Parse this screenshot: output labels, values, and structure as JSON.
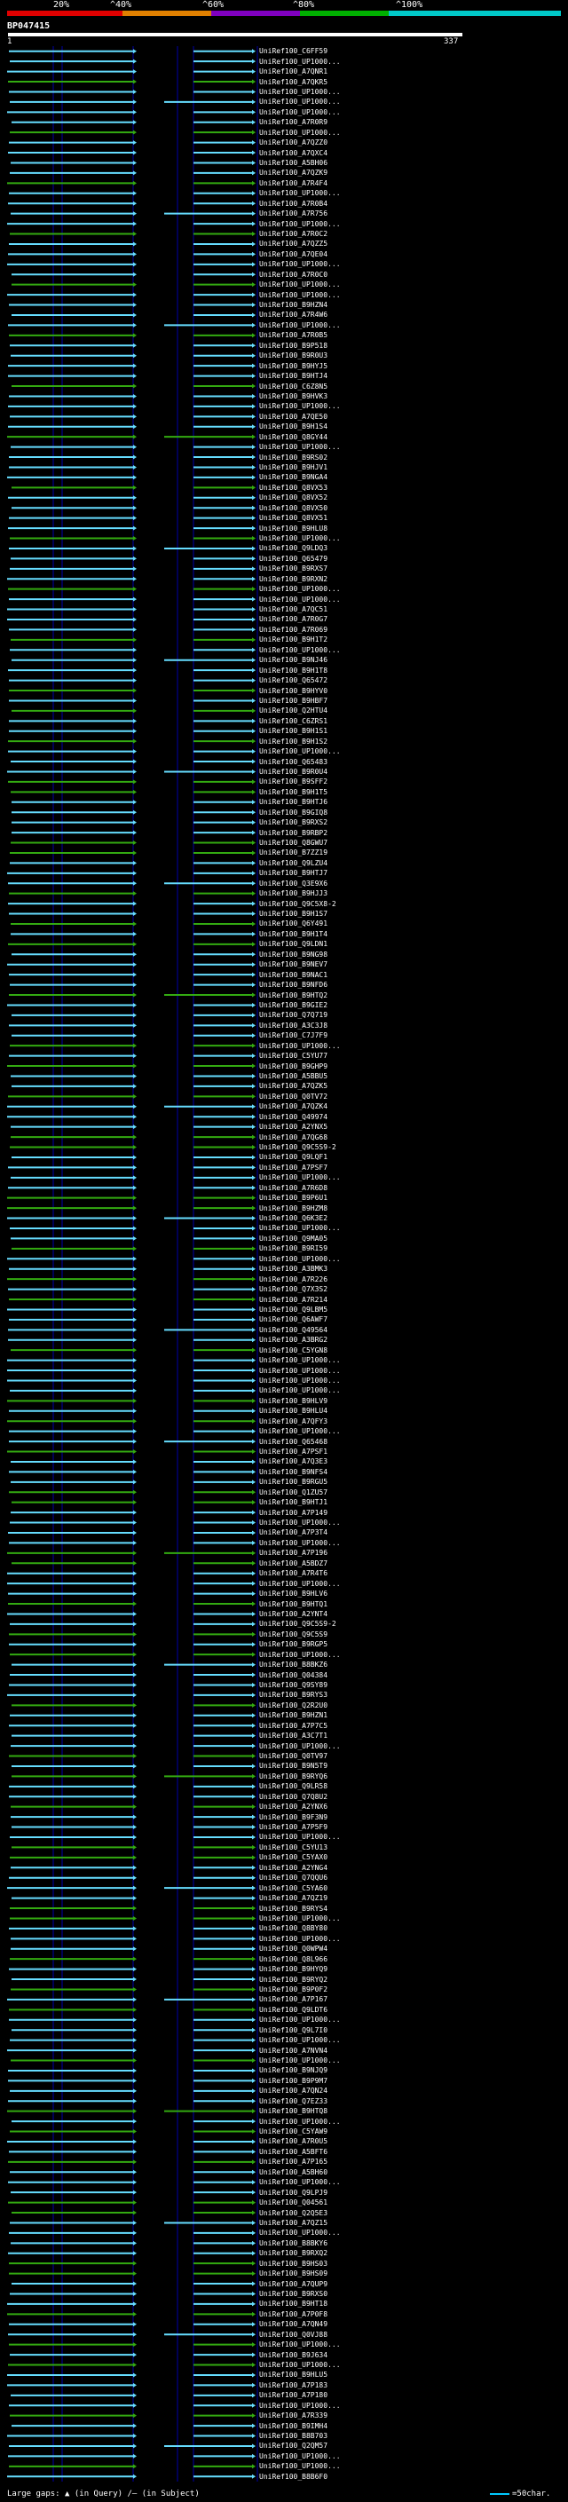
{
  "header": {
    "scale_labels": [
      "20%",
      "^40%",
      "^60%",
      "^80%",
      "^100%"
    ],
    "scale_colors": [
      "#e00000",
      "#e08000",
      "#8000c0",
      "#00b000",
      "#00c8c8"
    ],
    "query_id": "BP047415",
    "range_start": "1",
    "range_end": "337"
  },
  "colors": {
    "cyan": "#66ddff",
    "green": "#33aa11",
    "grid": "#0000aa"
  },
  "hits": [
    "UniRef100_C6FF59",
    "UniRef100_UP1000...",
    "UniRef100_A7QNR1",
    "UniRef100_A7QKR5",
    "UniRef100_UP1000...",
    "UniRef100_UP1000...",
    "UniRef100_UP1000...",
    "UniRef100_A7R0R9",
    "UniRef100_UP1000...",
    "UniRef100_A7QZZ0",
    "UniRef100_A7QXC4",
    "UniRef100_A5BH06",
    "UniRef100_A7QZK9",
    "UniRef100_A7R4F4",
    "UniRef100_UP1000...",
    "UniRef100_A7R0B4",
    "UniRef100_A7R756",
    "UniRef100_UP1000...",
    "UniRef100_A7R0C2",
    "UniRef100_A7QZZ5",
    "UniRef100_A7QE04",
    "UniRef100_UP1000...",
    "UniRef100_A7R0C0",
    "UniRef100_UP1000...",
    "UniRef100_UP1000...",
    "UniRef100_B9HZN4",
    "UniRef100_A7R4W6",
    "UniRef100_UP1000...",
    "UniRef100_A7R0B5",
    "UniRef100_B9P518",
    "UniRef100_B9R0U3",
    "UniRef100_B9HYJ5",
    "UniRef100_B9HTJ4",
    "UniRef100_C6Z8N5",
    "UniRef100_B9HVK3",
    "UniRef100_UP1000...",
    "UniRef100_A7QE50",
    "UniRef100_B9H1S4",
    "UniRef100_Q8GY44",
    "UniRef100_UP1000...",
    "UniRef100_B9RS02",
    "UniRef100_B9HJV1",
    "UniRef100_B9NGA4",
    "UniRef100_Q8VX53",
    "UniRef100_Q8VX52",
    "UniRef100_Q8VX50",
    "UniRef100_Q8VX51",
    "UniRef100_B9HLU8",
    "UniRef100_UP1000...",
    "UniRef100_Q9LDQ3",
    "UniRef100_Q65479",
    "UniRef100_B9RXS7",
    "UniRef100_B9RXN2",
    "UniRef100_UP1000...",
    "UniRef100_UP1000...",
    "UniRef100_A7QC51",
    "UniRef100_A7R0G7",
    "UniRef100_A7R069",
    "UniRef100_B9H1T2",
    "UniRef100_UP1000...",
    "UniRef100_B9NJ46",
    "UniRef100_B9H1T8",
    "UniRef100_Q65472",
    "UniRef100_B9HYV0",
    "UniRef100_B9HBF7",
    "UniRef100_Q2HTU4",
    "UniRef100_C6ZRS1",
    "UniRef100_B9H1S1",
    "UniRef100_B9H1S2",
    "UniRef100_UP1000...",
    "UniRef100_Q65483",
    "UniRef100_B9R0U4",
    "UniRef100_B9SFF2",
    "UniRef100_B9H1T5",
    "UniRef100_B9HTJ6",
    "UniRef100_B9GIQ8",
    "UniRef100_B9RXS2",
    "UniRef100_B9RBP2",
    "UniRef100_Q8GWU7",
    "UniRef100_B7ZZ19",
    "UniRef100_Q9LZU4",
    "UniRef100_B9HTJ7",
    "UniRef100_Q3E9X6",
    "UniRef100_B9HJJ3",
    "UniRef100_Q9C5X8-2",
    "UniRef100_B9H1S7",
    "UniRef100_Q6Y491",
    "UniRef100_B9H1T4",
    "UniRef100_Q9LDN1",
    "UniRef100_B9NG98",
    "UniRef100_B9NEV7",
    "UniRef100_B9NAC1",
    "UniRef100_B9NFD6",
    "UniRef100_B9HTQ2",
    "UniRef100_B9GIE2",
    "UniRef100_Q7Q719",
    "UniRef100_A3C3J8",
    "UniRef100_C7J7F9",
    "UniRef100_UP1000...",
    "UniRef100_C5YU77",
    "UniRef100_B9GHP9",
    "UniRef100_A5BBU5",
    "UniRef100_A7QZK5",
    "UniRef100_Q0TV72",
    "UniRef100_A7QZK4",
    "UniRef100_Q49974",
    "UniRef100_A2YNX5",
    "UniRef100_A7QG68",
    "UniRef100_Q9C5S9-2",
    "UniRef100_Q9LQF1",
    "UniRef100_A7PSF7",
    "UniRef100_UP1000...",
    "UniRef100_A7R6D8",
    "UniRef100_B9P6U1",
    "UniRef100_B9HZM8",
    "UniRef100_Q6K3E2",
    "UniRef100_UP1000...",
    "UniRef100_Q9MA05",
    "UniRef100_B9RI59",
    "UniRef100_UP1000...",
    "UniRef100_A3BMK3",
    "UniRef100_A7R226",
    "UniRef100_Q7X3S2",
    "UniRef100_A7R214",
    "UniRef100_Q9LBM5",
    "UniRef100_Q6AWF7",
    "UniRef100_Q49564",
    "UniRef100_A3BRG2",
    "UniRef100_C5YGN8",
    "UniRef100_UP1000...",
    "UniRef100_UP1000...",
    "UniRef100_UP1000...",
    "UniRef100_UP1000...",
    "UniRef100_B9HLV9",
    "UniRef100_B9HLU4",
    "UniRef100_A7QFY3",
    "UniRef100_UP1000...",
    "UniRef100_Q65468",
    "UniRef100_A7PSF1",
    "UniRef100_A7Q3E3",
    "UniRef100_B9NFS4",
    "UniRef100_B9RGU5",
    "UniRef100_Q1ZU57",
    "UniRef100_B9HTJ1",
    "UniRef100_A7P149",
    "UniRef100_UP1000...",
    "UniRef100_A7P3T4",
    "UniRef100_UP1000...",
    "UniRef100_A7P196",
    "UniRef100_A5BDZ7",
    "UniRef100_A7R4T6",
    "UniRef100_UP1000...",
    "UniRef100_B9HLV6",
    "UniRef100_B9HTQ1",
    "UniRef100_A2YNT4",
    "UniRef100_Q9C5S9-2",
    "UniRef100_Q9C5S9",
    "UniRef100_B9RGP5",
    "UniRef100_UP1000...",
    "UniRef100_B8BKZ6",
    "UniRef100_Q04384",
    "UniRef100_Q9SY89",
    "UniRef100_B9RYS3",
    "UniRef100_Q2R2U0",
    "UniRef100_B9HZN1",
    "UniRef100_A7P7C5",
    "UniRef100_A3C7T1",
    "UniRef100_UP1000...",
    "UniRef100_Q0TV97",
    "UniRef100_B9N5T9",
    "UniRef100_B9RYQ6",
    "UniRef100_Q9LR58",
    "UniRef100_Q7Q8U2",
    "UniRef100_A2YNX6",
    "UniRef100_B9F3N9",
    "UniRef100_A7P5F9",
    "UniRef100_UP1000...",
    "UniRef100_C5YU13",
    "UniRef100_C5YAX0",
    "UniRef100_A2YNG4",
    "UniRef100_Q7QQU6",
    "UniRef100_C5YA60",
    "UniRef100_A7QZ19",
    "UniRef100_B9RYS4",
    "UniRef100_UP1000...",
    "UniRef100_Q8BY80",
    "UniRef100_UP1000...",
    "UniRef100_Q0WPW4",
    "UniRef100_Q8L966",
    "UniRef100_B9HYQ9",
    "UniRef100_B9RYQ2",
    "UniRef100_B9P0F2",
    "UniRef100_A7P167",
    "UniRef100_Q9LDT6",
    "UniRef100_UP1000...",
    "UniRef100_Q9L7I0",
    "UniRef100_UP1000...",
    "UniRef100_A7NVN4",
    "UniRef100_UP1000...",
    "UniRef100_B9NJQ9",
    "UniRef100_B9P9M7",
    "UniRef100_A7QN24",
    "UniRef100_Q7EZ33",
    "UniRef100_B9HTQ8",
    "UniRef100_UP1000...",
    "UniRef100_C5YAW9",
    "UniRef100_A7R0U5",
    "UniRef100_A5BFT6",
    "UniRef100_A7P165",
    "UniRef100_A5BH60",
    "UniRef100_UP1000...",
    "UniRef100_Q9LPJ9",
    "UniRef100_Q04561",
    "UniRef100_Q2Q5E3",
    "UniRef100_A7QZ15",
    "UniRef100_UP1000...",
    "UniRef100_B8BKY6",
    "UniRef100_B9RXQ2",
    "UniRef100_B9HS03",
    "UniRef100_B9HS09",
    "UniRef100_A7QUP9",
    "UniRef100_B9RXS0",
    "UniRef100_B9HT18",
    "UniRef100_A7P0F8",
    "UniRef100_A7QN49",
    "UniRef100_Q0VJ88",
    "UniRef100_UP1000...",
    "UniRef100_B9J634",
    "UniRef100_UP1000...",
    "UniRef100_B9HLU5",
    "UniRef100_A7P183",
    "UniRef100_A7P180",
    "UniRef100_UP1000...",
    "UniRef100_A7R339",
    "UniRef100_B9IMH4",
    "UniRef100_B8B703",
    "UniRef100_Q2QM57",
    "UniRef100_UP1000...",
    "UniRef100_UP1000...",
    "UniRef100_B8B6F0"
  ],
  "legend": {
    "large_gaps": "Large gaps:",
    "in_query": "(in Query)",
    "in_subject": "(in Subject)",
    "scale": "=50char."
  }
}
